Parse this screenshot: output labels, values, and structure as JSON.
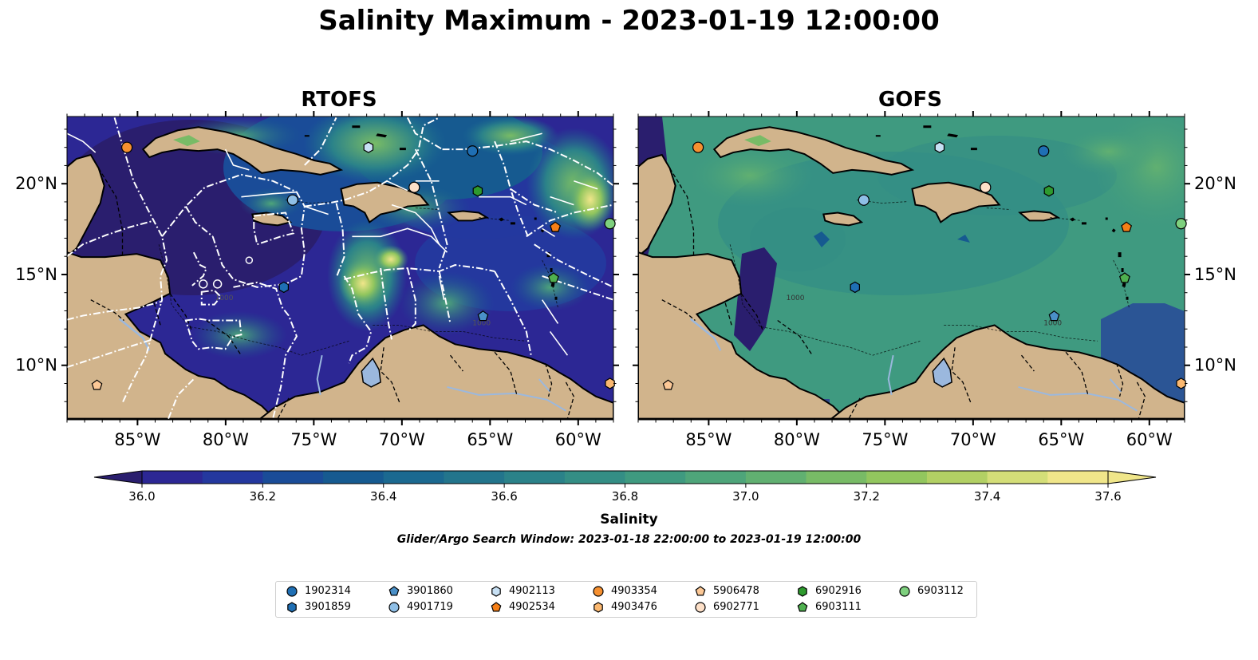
{
  "title": "Salinity Maximum - 2023-01-19 12:00:00",
  "panels": [
    {
      "id": "rtofs",
      "title": "RTOFS"
    },
    {
      "id": "gofs",
      "title": "GOFS"
    }
  ],
  "map_extent": {
    "lon": [
      -89.0,
      -58.0
    ],
    "lat": [
      7.0,
      23.7
    ]
  },
  "lon_ticks": [
    "85°W",
    "80°W",
    "75°W",
    "70°W",
    "65°W",
    "60°W"
  ],
  "lat_ticks": [
    "20°N",
    "15°N",
    "10°N"
  ],
  "contour_labels": [
    "1000",
    "1000"
  ],
  "colorbar": {
    "label": "Salinity",
    "min": 36.0,
    "max": 37.6,
    "step": 0.1,
    "ticks": [
      "36.0",
      "36.2",
      "36.4",
      "36.6",
      "36.8",
      "37.0",
      "37.2",
      "37.4",
      "37.6"
    ],
    "extend": "both",
    "colormap": "haline",
    "colors": [
      "#2a1e6e",
      "#2c2794",
      "#24389e",
      "#1a4c98",
      "#165a90",
      "#1b6990",
      "#23758c",
      "#2b8289",
      "#348e85",
      "#3f9a80",
      "#4ea57a",
      "#61b071",
      "#78bb66",
      "#92c65e",
      "#b2d064",
      "#d4de78",
      "#f0e68a"
    ]
  },
  "subtitle": "Glider/Argo Search Window: 2023-01-18 22:00:00 to 2023-01-19 12:00:00",
  "colors": {
    "land": "#d1b48c",
    "lake": "#9bb8de",
    "ocean_deep": "#2a1e6e"
  },
  "legend": [
    {
      "id": "1902314",
      "marker": "circle",
      "color": "#1f6fb4"
    },
    {
      "id": "3901859",
      "marker": "hexagon",
      "color": "#1f6fb4"
    },
    {
      "id": "3901860",
      "marker": "pentagon",
      "color": "#4a90c8"
    },
    {
      "id": "4901719",
      "marker": "circle",
      "color": "#8fbfe6"
    },
    {
      "id": "4902113",
      "marker": "hexagon",
      "color": "#c7e0f4"
    },
    {
      "id": "4902534",
      "marker": "pentagon",
      "color": "#f57f17"
    },
    {
      "id": "4903354",
      "marker": "circle",
      "color": "#f69030"
    },
    {
      "id": "4903476",
      "marker": "hexagon",
      "color": "#fbb870"
    },
    {
      "id": "5906478",
      "marker": "pentagon",
      "color": "#fcc896"
    },
    {
      "id": "6902771",
      "marker": "circle",
      "color": "#fde0c8"
    },
    {
      "id": "6902916",
      "marker": "hexagon",
      "color": "#2e9a2e"
    },
    {
      "id": "6903111",
      "marker": "pentagon",
      "color": "#4fb04f"
    },
    {
      "id": "6903112",
      "marker": "circle",
      "color": "#7ed07e"
    }
  ],
  "floats": [
    {
      "id": "4903354",
      "lon": -85.6,
      "lat": 22.0
    },
    {
      "id": "4902113",
      "lon": -71.9,
      "lat": 22.0
    },
    {
      "id": "1902314",
      "lon": -66.0,
      "lat": 21.8
    },
    {
      "id": "6902771",
      "lon": -69.3,
      "lat": 19.8
    },
    {
      "id": "6902916",
      "lon": -65.7,
      "lat": 19.6
    },
    {
      "id": "4901719",
      "lon": -76.2,
      "lat": 19.1
    },
    {
      "id": "4902534",
      "lon": -61.3,
      "lat": 17.6
    },
    {
      "id": "6903112",
      "lon": -58.2,
      "lat": 17.8
    },
    {
      "id": "6903111",
      "lon": -61.4,
      "lat": 14.8
    },
    {
      "id": "3901859",
      "lon": -76.7,
      "lat": 14.3
    },
    {
      "id": "3901860",
      "lon": -65.4,
      "lat": 12.7
    },
    {
      "id": "5906478",
      "lon": -87.3,
      "lat": 8.9
    },
    {
      "id": "4903476",
      "lon": -58.2,
      "lat": 9.0
    }
  ]
}
